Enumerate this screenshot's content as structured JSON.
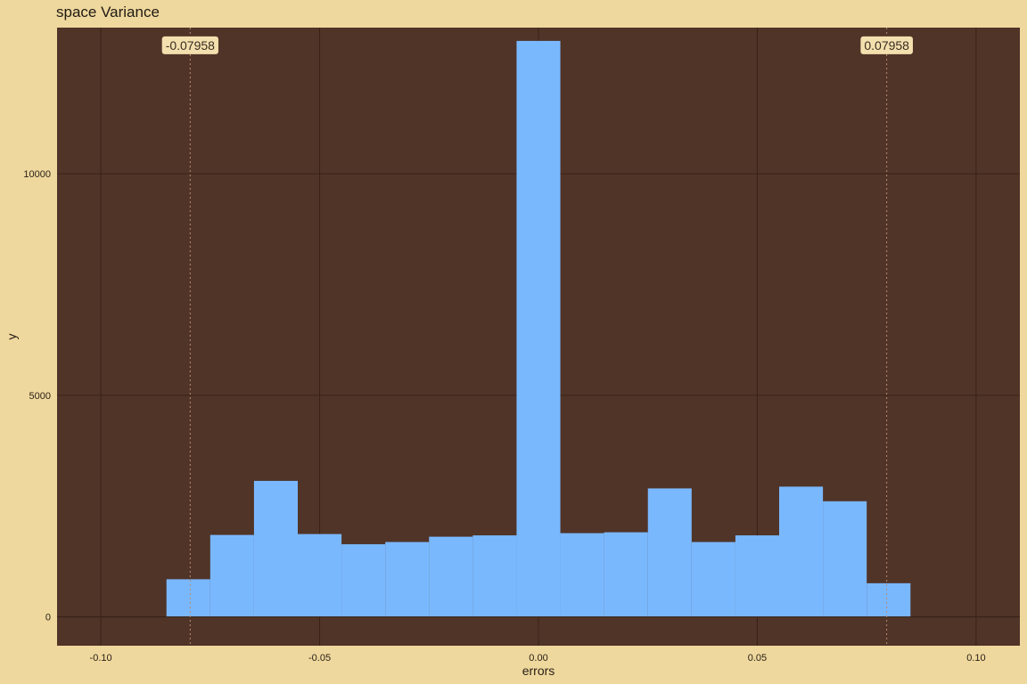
{
  "chart_data": {
    "type": "bar",
    "title": "space Variance",
    "xlabel": "errors",
    "ylabel": "y",
    "xlim": [
      -0.11,
      0.11
    ],
    "ylim": [
      -650,
      13300
    ],
    "grid": true,
    "colors": {
      "background": "#efd89d",
      "panel": "#503428",
      "grid": "#3a2218",
      "bar": "#7ab8fe",
      "vline": "#b98a6e",
      "label_bg": "#f3e0ae",
      "text": "#2a2018"
    },
    "x_ticks": [
      {
        "value": -0.1,
        "label": "-0.10"
      },
      {
        "value": -0.05,
        "label": "-0.05"
      },
      {
        "value": 0.0,
        "label": "0.00"
      },
      {
        "value": 0.05,
        "label": "0.05"
      },
      {
        "value": 0.1,
        "label": "0.10"
      }
    ],
    "y_ticks": [
      {
        "value": 0,
        "label": "0"
      },
      {
        "value": 5000,
        "label": "5000"
      },
      {
        "value": 10000,
        "label": "10000"
      }
    ],
    "bins": [
      {
        "x0": -0.085,
        "x1": -0.075,
        "count": 850
      },
      {
        "x0": -0.075,
        "x1": -0.065,
        "count": 1850
      },
      {
        "x0": -0.065,
        "x1": -0.055,
        "count": 3070
      },
      {
        "x0": -0.055,
        "x1": -0.045,
        "count": 1870
      },
      {
        "x0": -0.045,
        "x1": -0.035,
        "count": 1640
      },
      {
        "x0": -0.035,
        "x1": -0.025,
        "count": 1690
      },
      {
        "x0": -0.025,
        "x1": -0.015,
        "count": 1810
      },
      {
        "x0": -0.015,
        "x1": -0.005,
        "count": 1840
      },
      {
        "x0": -0.005,
        "x1": 0.005,
        "count": 13000
      },
      {
        "x0": 0.005,
        "x1": 0.015,
        "count": 1890
      },
      {
        "x0": 0.015,
        "x1": 0.025,
        "count": 1910
      },
      {
        "x0": 0.025,
        "x1": 0.035,
        "count": 2900
      },
      {
        "x0": 0.035,
        "x1": 0.045,
        "count": 1690
      },
      {
        "x0": 0.045,
        "x1": 0.055,
        "count": 1840
      },
      {
        "x0": 0.055,
        "x1": 0.065,
        "count": 2940
      },
      {
        "x0": 0.065,
        "x1": 0.075,
        "count": 2610
      },
      {
        "x0": 0.075,
        "x1": 0.085,
        "count": 760
      }
    ],
    "annotations": [
      {
        "x": -0.07958,
        "label": "-0.07958",
        "y": 12900
      },
      {
        "x": 0.07958,
        "label": "0.07958",
        "y": 12900
      }
    ]
  }
}
